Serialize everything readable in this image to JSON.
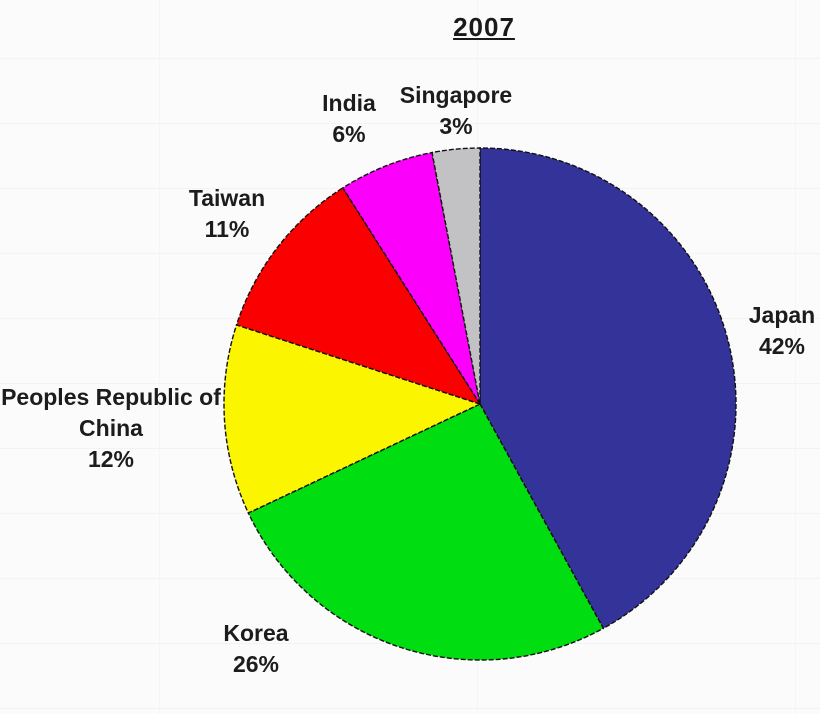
{
  "title": "2007",
  "chart_data": {
    "type": "pie",
    "title": "2007",
    "categories": [
      "Japan",
      "Korea",
      "Peoples Republic of China",
      "Taiwan",
      "India",
      "Singapore"
    ],
    "values": [
      42,
      26,
      12,
      11,
      6,
      3
    ],
    "unit": "%",
    "start": "12-oclock",
    "direction": "clockwise",
    "legend_position": "none",
    "labels_on_chart": true,
    "outline_color": "#111111",
    "slices": [
      {
        "label": "Japan",
        "value": 42,
        "pct": "42%",
        "color": "#333399"
      },
      {
        "label": "Korea",
        "value": 26,
        "pct": "26%",
        "color": "#00DD11"
      },
      {
        "label": "Peoples Republic of China",
        "value": 12,
        "pct": "12%",
        "color": "#FBF500"
      },
      {
        "label": "Taiwan",
        "value": 11,
        "pct": "11%",
        "color": "#FA0000"
      },
      {
        "label": "India",
        "value": 6,
        "pct": "6%",
        "color": "#FB00FB"
      },
      {
        "label": "Singapore",
        "value": 3,
        "pct": "3%",
        "color": "#C2C2C4"
      }
    ]
  }
}
